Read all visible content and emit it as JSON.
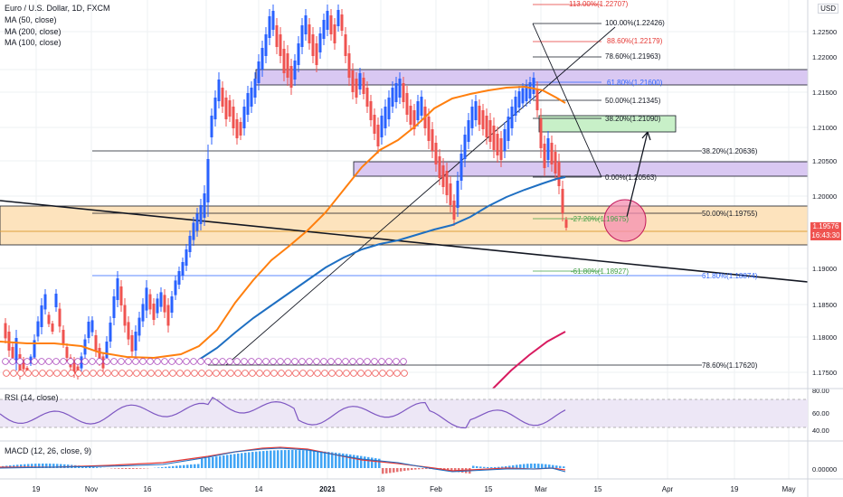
{
  "header": {
    "symbol_line": "Euro / U.S. Dollar, 1D, FXCM",
    "ma50": "MA (50, close)",
    "ma200": "MA (200, close)",
    "ma100": "MA (100, close)"
  },
  "price_scale": {
    "currency": "USD",
    "ticks": [
      "1.22500",
      "1.22000",
      "1.21500",
      "1.21000",
      "1.20500",
      "1.20000",
      "1.19500",
      "1.19000",
      "1.18500",
      "1.18000",
      "1.17500"
    ],
    "current_price": "1.19576",
    "countdown": "16:43:30"
  },
  "fib_labels": [
    {
      "text": "113.00%(1.22707)",
      "color": "#e53935"
    },
    {
      "text": "100.00%(1.22426)",
      "color": "#131722"
    },
    {
      "text": "88.60%(1.22179)",
      "color": "#e53935"
    },
    {
      "text": "78.60%(1.21963)",
      "color": "#131722"
    },
    {
      "text": "61.80%(1.21600)",
      "color": "#2962ff"
    },
    {
      "text": "50.00%(1.21345)",
      "color": "#131722"
    },
    {
      "text": "38.20%(1.21090)",
      "color": "#131722"
    },
    {
      "text": "38.20%(1.20636)",
      "color": "#131722"
    },
    {
      "text": "0.00%(1.20563)",
      "color": "#131722"
    },
    {
      "text": "50.00%(1.19755)",
      "color": "#131722"
    },
    {
      "text": "-27.20%(1.19675)",
      "color": "#43a047"
    },
    {
      "text": "-61.80%(1.18927)",
      "color": "#43a047"
    },
    {
      "text": "61.80%(1.18874)",
      "color": "#2962ff"
    },
    {
      "text": "78.60%(1.17620)",
      "color": "#131722"
    }
  ],
  "rsi": {
    "label": "RSI (14, close)",
    "ticks": [
      "80.00",
      "60.00",
      "40.00"
    ]
  },
  "macd": {
    "label": "MACD (12, 26, close, 9)",
    "ticks": [
      "0.00000"
    ]
  },
  "time_axis": [
    "19",
    "Nov",
    "16",
    "Dec",
    "14",
    "2021",
    "18",
    "Feb",
    "15",
    "Mar",
    "15",
    "Apr",
    "19",
    "May"
  ],
  "colors": {
    "up": "#2962ff",
    "down": "#ef5350",
    "ma50": "#ff7f0e",
    "ma100": "#1e6fc2",
    "ma200": "#d81b60",
    "zone_purple": "#d1c4e9",
    "zone_orange": "#ffe0b2",
    "zone_green": "#c8e6c9"
  }
}
